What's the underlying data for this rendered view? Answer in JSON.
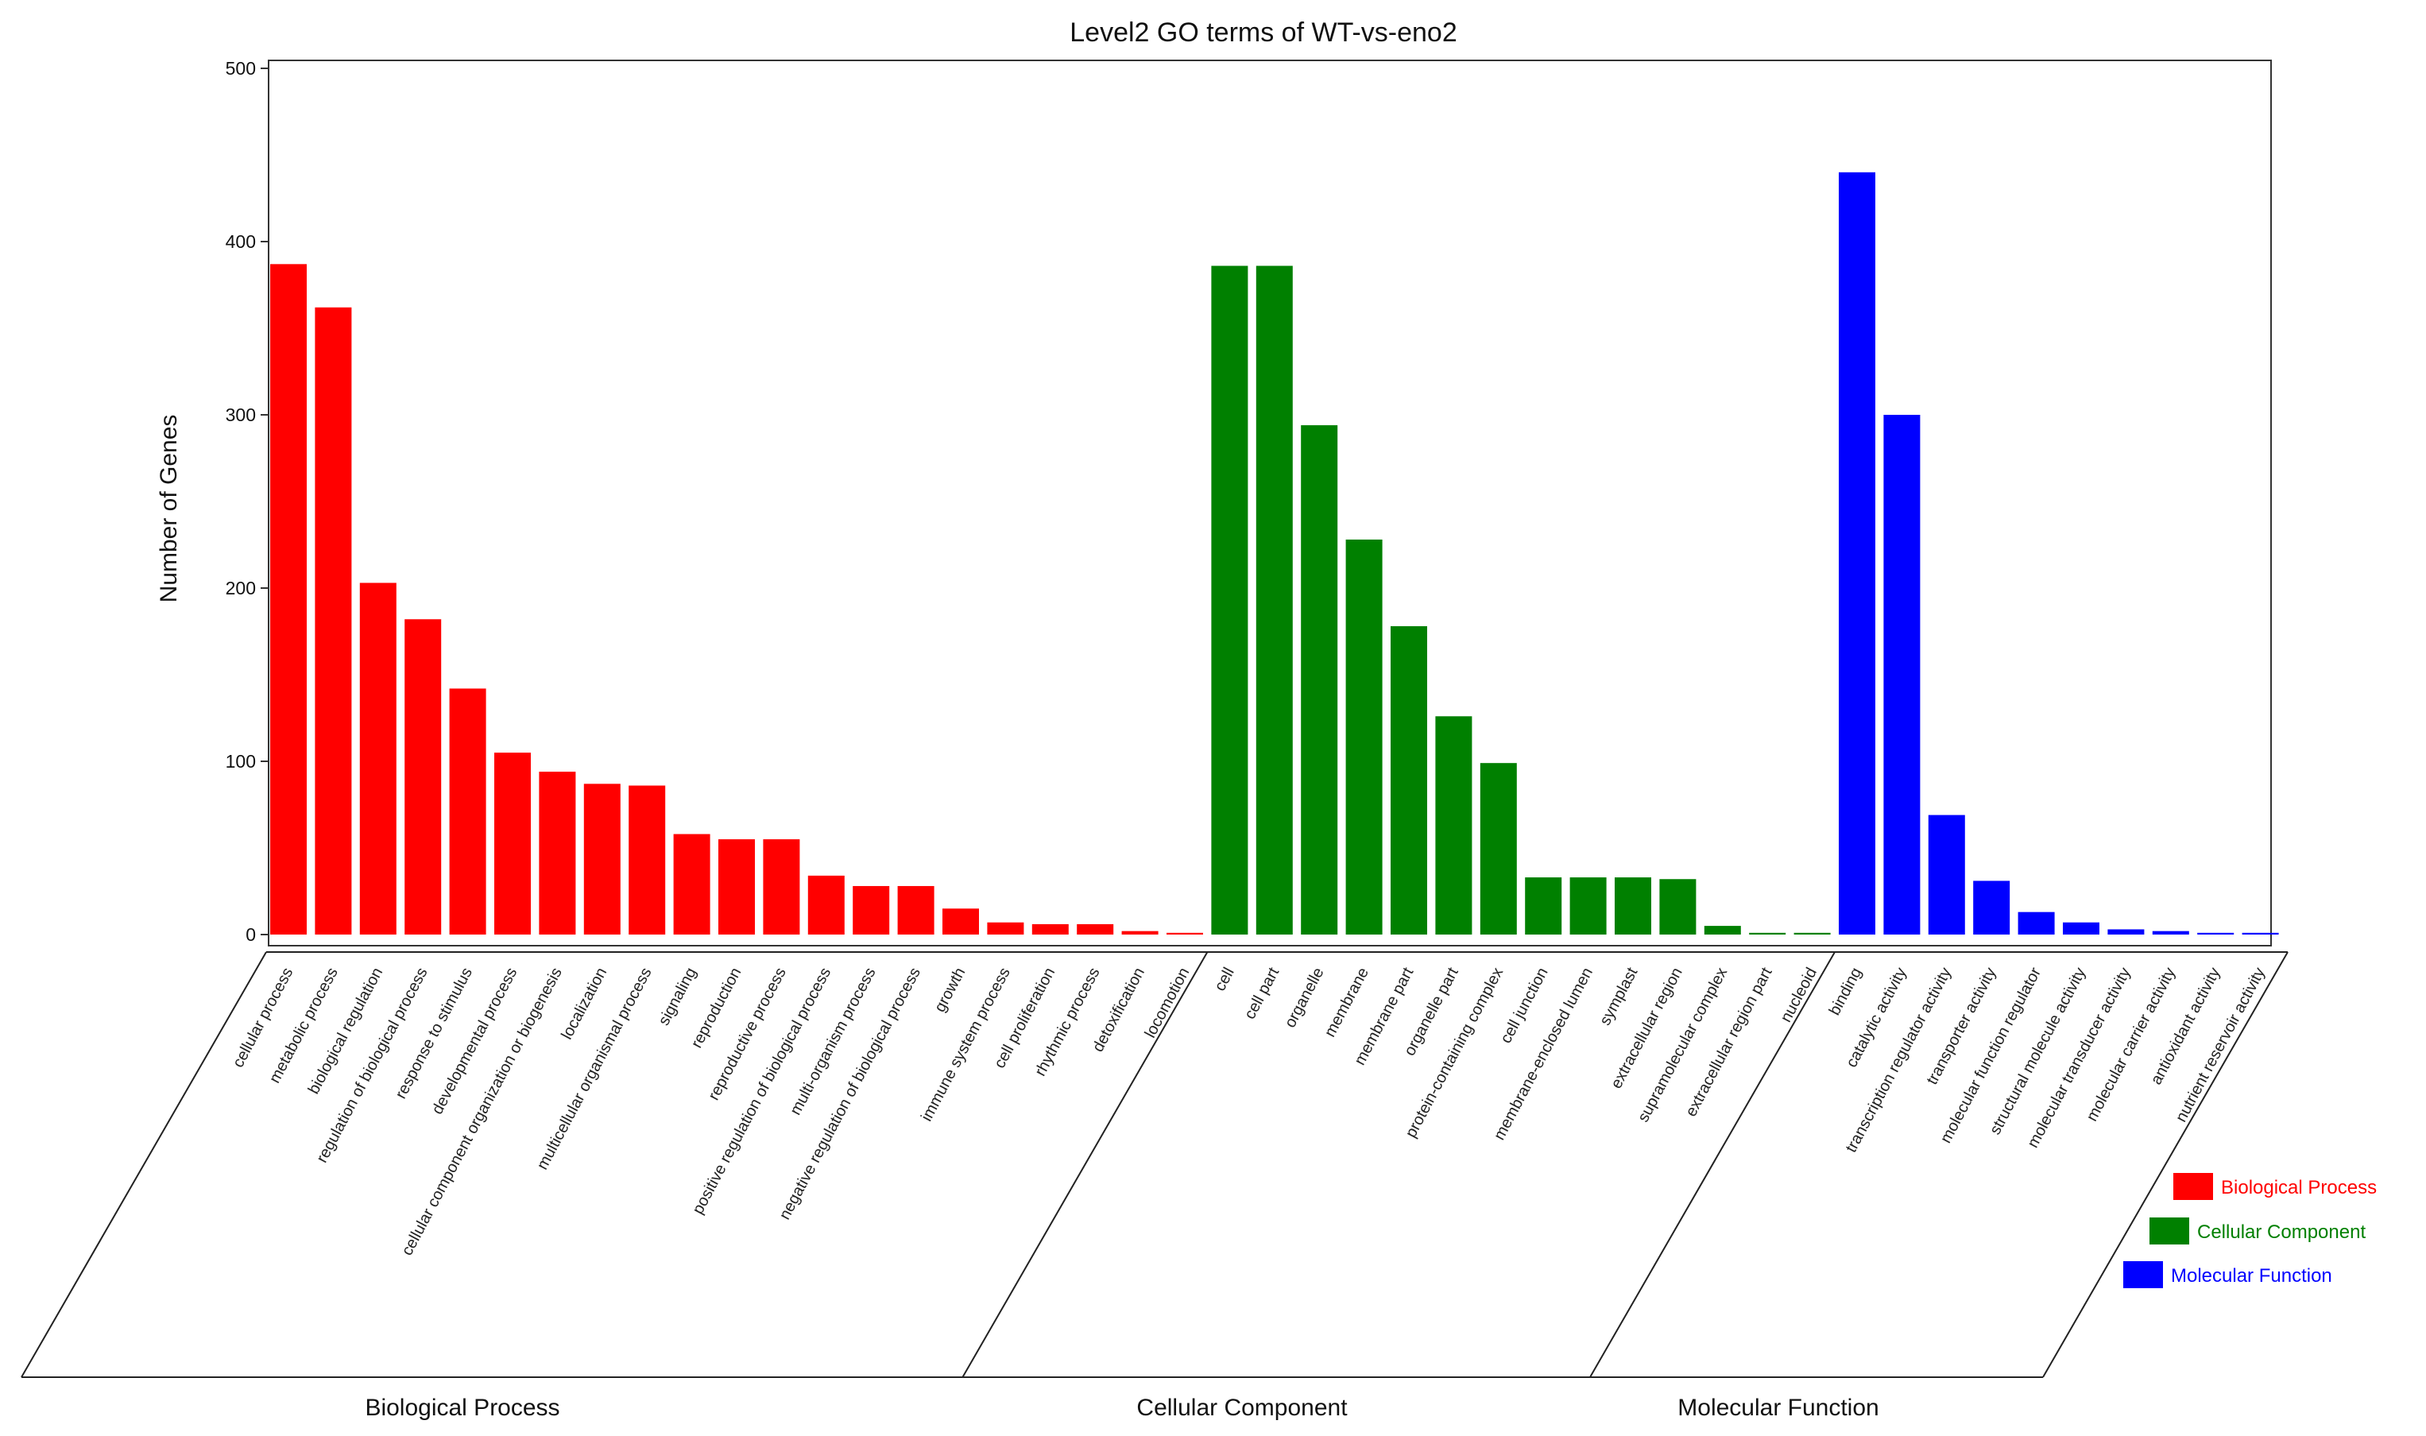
{
  "chart_data": {
    "type": "bar",
    "title": "Level2 GO terms of WT-vs-eno2",
    "xlabel": "",
    "ylabel": "Number of Genes",
    "ylim": [
      0,
      500
    ],
    "yticks": [
      "0",
      "100",
      "200",
      "300",
      "400",
      "500"
    ],
    "grid": false,
    "legend_position": "bottom-right",
    "series": [
      {
        "name": "Biological Process",
        "color": "#ff0000",
        "categories": [
          "cellular process",
          "metabolic process",
          "biological regulation",
          "regulation of biological process",
          "response to stimulus",
          "developmental process",
          "cellular component organization or biogenesis",
          "localization",
          "multicellular organismal process",
          "signaling",
          "reproduction",
          "reproductive process",
          "positive regulation of biological process",
          "multi-organism process",
          "negative regulation of biological process",
          "growth",
          "immune system process",
          "cell proliferation",
          "rhythmic process",
          "detoxification",
          "locomotion"
        ],
        "values": [
          387,
          362,
          203,
          182,
          142,
          105,
          94,
          87,
          86,
          58,
          55,
          55,
          34,
          28,
          28,
          15,
          7,
          6,
          6,
          2,
          1
        ]
      },
      {
        "name": "Cellular Component",
        "color": "#008000",
        "categories": [
          "cell",
          "cell part",
          "organelle",
          "membrane",
          "membrane part",
          "organelle part",
          "protein-containing complex",
          "cell junction",
          "membrane-enclosed lumen",
          "symplast",
          "extracellular region",
          "supramolecular complex",
          "extracellular region part",
          "nucleoid"
        ],
        "values": [
          386,
          386,
          294,
          228,
          178,
          126,
          99,
          33,
          33,
          33,
          32,
          5,
          1,
          1
        ]
      },
      {
        "name": "Molecular Function",
        "color": "#0000ff",
        "categories": [
          "binding",
          "catalytic activity",
          "transcription regulator activity",
          "transporter activity",
          "molecular function regulator",
          "structural molecule activity",
          "molecular transducer activity",
          "molecular carrier activity",
          "antioxidant activity",
          "nutrient reservoir activity"
        ],
        "values": [
          440,
          300,
          69,
          31,
          13,
          7,
          3,
          2,
          1,
          1
        ]
      }
    ]
  }
}
